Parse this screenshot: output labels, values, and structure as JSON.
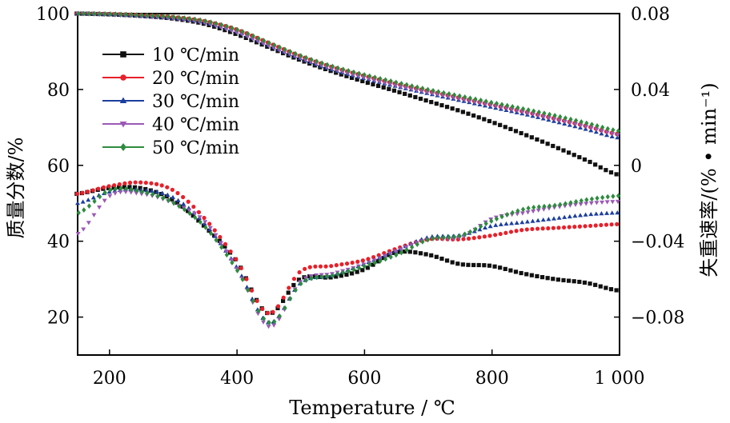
{
  "chart_data": {
    "type": "scatter",
    "xlabel": "Temperature / ℃",
    "ylabel_left": "质量分数/%",
    "ylabel_right": "失重速率/(% • min⁻¹)",
    "xlim": [
      150,
      1000
    ],
    "ylim_left": [
      10,
      100
    ],
    "ylim_right": [
      -0.1,
      0.08
    ],
    "xticks": [
      200,
      400,
      600,
      800,
      1000
    ],
    "xtick_labels": [
      "200",
      "400",
      "600",
      "800",
      "1 000"
    ],
    "yticks_left": [
      20,
      40,
      60,
      80,
      100
    ],
    "yticks_left_labels": [
      "20",
      "40",
      "60",
      "80",
      "100"
    ],
    "yticks_right": [
      -0.08,
      -0.04,
      0,
      0.04,
      0.08
    ],
    "yticks_right_labels": [
      "−0.08",
      "−0.04",
      "0",
      "0.04",
      "0.08"
    ],
    "grid": false,
    "legend_position": "top-left",
    "x": [
      150,
      200,
      250,
      300,
      350,
      400,
      450,
      500,
      550,
      600,
      650,
      700,
      750,
      800,
      850,
      900,
      950,
      1000
    ],
    "series": [
      {
        "name": "10 ℃/min",
        "color": "#111111",
        "marker": "square",
        "mass": [
          100,
          99.8,
          99.4,
          98.7,
          97.3,
          94.6,
          91.2,
          87.8,
          84.8,
          82.1,
          79.6,
          77.0,
          74.4,
          71.5,
          68.3,
          64.9,
          61.3,
          57.5
        ],
        "rate": [
          -0.015,
          -0.012,
          -0.012,
          -0.018,
          -0.032,
          -0.05,
          -0.078,
          -0.06,
          -0.059,
          -0.055,
          -0.046,
          -0.047,
          -0.052,
          -0.053,
          -0.057,
          -0.06,
          -0.062,
          -0.066
        ]
      },
      {
        "name": "20 ℃/min",
        "color": "#e8202a",
        "marker": "circle",
        "mass": [
          100,
          99.9,
          99.6,
          99.1,
          98.0,
          95.8,
          92.3,
          88.8,
          85.9,
          83.6,
          81.5,
          79.6,
          77.8,
          76.0,
          74.2,
          72.3,
          70.3,
          68.2
        ],
        "rate": [
          -0.015,
          -0.011,
          -0.009,
          -0.013,
          -0.028,
          -0.05,
          -0.078,
          -0.056,
          -0.053,
          -0.05,
          -0.044,
          -0.039,
          -0.039,
          -0.037,
          -0.034,
          -0.033,
          -0.032,
          -0.031
        ]
      },
      {
        "name": "30 ℃/min",
        "color": "#1c3f9e",
        "marker": "triangle-up",
        "mass": [
          100,
          99.8,
          99.4,
          98.8,
          97.6,
          95.2,
          91.6,
          88.1,
          85.2,
          82.9,
          80.8,
          78.9,
          77.1,
          75.3,
          73.5,
          71.5,
          69.4,
          67.2
        ],
        "rate": [
          -0.02,
          -0.014,
          -0.013,
          -0.017,
          -0.031,
          -0.054,
          -0.083,
          -0.062,
          -0.058,
          -0.052,
          -0.045,
          -0.038,
          -0.037,
          -0.032,
          -0.03,
          -0.028,
          -0.026,
          -0.025
        ]
      },
      {
        "name": "40 ℃/min",
        "color": "#9b59b6",
        "marker": "triangle-down",
        "mass": [
          100,
          99.7,
          99.3,
          98.7,
          97.5,
          95.0,
          91.5,
          88.2,
          85.4,
          83.1,
          81.0,
          79.2,
          77.5,
          75.8,
          74.0,
          72.1,
          70.1,
          68.0
        ],
        "rate": [
          -0.036,
          -0.016,
          -0.015,
          -0.02,
          -0.03,
          -0.055,
          -0.085,
          -0.061,
          -0.057,
          -0.052,
          -0.045,
          -0.039,
          -0.038,
          -0.028,
          -0.025,
          -0.022,
          -0.02,
          -0.019
        ]
      },
      {
        "name": "50 ℃/min",
        "color": "#2e8b3e",
        "marker": "diamond",
        "mass": [
          100,
          99.9,
          99.6,
          99.1,
          98.0,
          95.7,
          92.2,
          88.8,
          86.0,
          83.8,
          81.8,
          79.9,
          78.2,
          76.5,
          74.8,
          73.0,
          71.0,
          69.0
        ],
        "rate": [
          -0.025,
          -0.013,
          -0.014,
          -0.02,
          -0.033,
          -0.056,
          -0.083,
          -0.062,
          -0.058,
          -0.053,
          -0.047,
          -0.039,
          -0.037,
          -0.029,
          -0.023,
          -0.021,
          -0.018,
          -0.016
        ]
      }
    ]
  }
}
